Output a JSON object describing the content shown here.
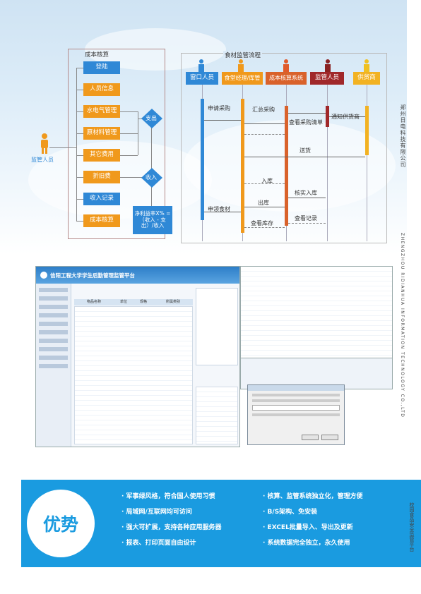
{
  "flowchart": {
    "cost_title": "成本核算",
    "supervision_title": "食材监管流程",
    "actor": "监管人员",
    "cost_items": [
      "登陆",
      "人员信息",
      "水电气管理",
      "原材料管理",
      "其它费用",
      "折旧费",
      "收入记录",
      "成本核算"
    ],
    "decisions": [
      "支出",
      "收入"
    ],
    "formula": "净利益率X% = （收入 - 支出）/收入",
    "lanes": [
      "窗口人员",
      "食堂经理/库管",
      "成本核算系统",
      "监管人员",
      "供货商"
    ],
    "messages": [
      "申请采购",
      "汇总采购",
      "查看采购清单",
      "通知供货商",
      "送货",
      "入库",
      "核实入库",
      "出库",
      "申领食材",
      "查看库存",
      "查看记录"
    ]
  },
  "company": {
    "cn": "郑州日电科技有限公司",
    "en": "ZHENGZHOU RIDIANHUA INFORMATION TECHNOLOGY CO.,LTD",
    "platform": "校园食品安全监管平台"
  },
  "screens": {
    "app_title": "信阳工程大学学生后勤管理监管平台",
    "col_headers": [
      "物品名称",
      "单位",
      "规格",
      "所属类别"
    ]
  },
  "advantages": {
    "title": "优势",
    "items": [
      "· 军事绿风格，符合国人使用习惯",
      "· 核算、监管系统独立化，管理方便",
      "· 局域网/互联网均可访问",
      "· B/S架构、免安装",
      "· 强大可扩展，支持各种应用服务器",
      "· EXCEL批量导入、导出及更新",
      "· 报表、打印页面自由设计",
      "· 系统数据完全独立，永久使用"
    ]
  },
  "colors": {
    "orange": "#f0991c",
    "blue": "#2f88d6",
    "advantage_bg": "#1a9be0"
  }
}
